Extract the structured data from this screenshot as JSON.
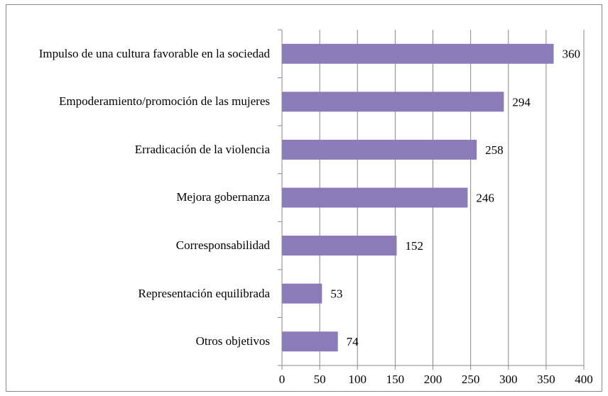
{
  "chart_data": {
    "type": "bar",
    "orientation": "horizontal",
    "categories": [
      "Impulso de una cultura favorable en la sociedad",
      "Empoderamiento/promoción de las mujeres",
      "Erradicación de la violencia",
      "Mejora gobernanza",
      "Corresponsabilidad",
      "Representación equilibrada",
      "Otros objetivos"
    ],
    "values": [
      360,
      294,
      258,
      246,
      152,
      53,
      74
    ],
    "color": "#8b7bb8",
    "xlim": [
      0,
      400
    ],
    "xticks": [
      0,
      50,
      100,
      150,
      200,
      250,
      300,
      350,
      400
    ],
    "grid": true
  }
}
